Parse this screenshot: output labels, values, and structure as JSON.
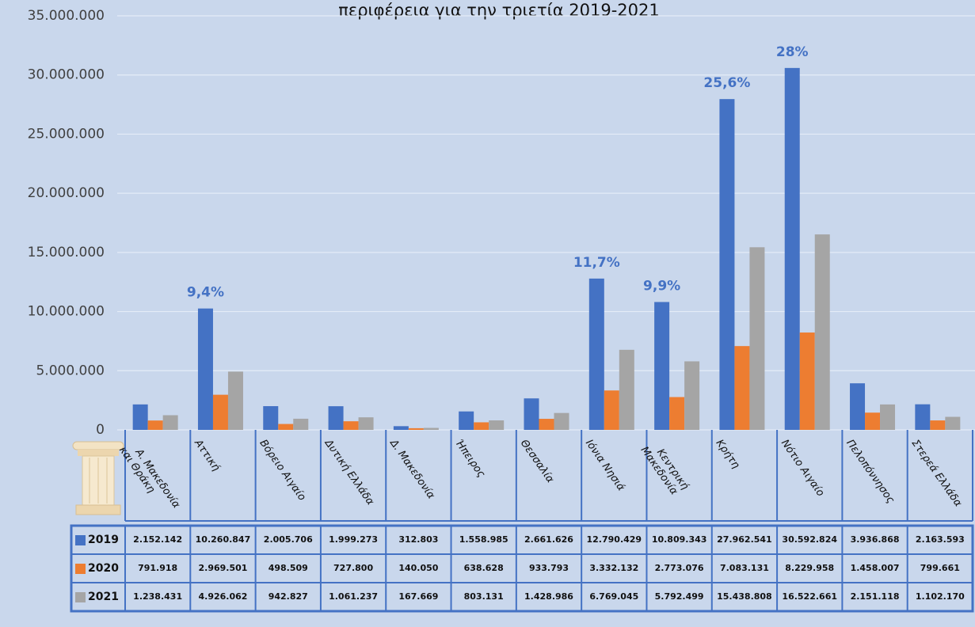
{
  "chart_data": {
    "type": "bar",
    "title": "περιφέρεια για την τριετία 2019-2021",
    "categories": [
      "Α. Μακεδονία και Θράκη",
      "Αττική",
      "Βόρειο Αιγαίο",
      "Δυτική Ελλάδα",
      "Δ. Μακεδονία",
      "Ήπειρος",
      "Θεσσαλία",
      "Ιόνια Νησιά",
      "Κεντρική Μακεδονία",
      "Κρήτη",
      "Νότιο Αιγαίο",
      "Πελοπόννησος",
      "Στερεά Ελλάδα"
    ],
    "series": [
      {
        "name": "2019",
        "color": "#4472c4",
        "values": [
          2152142,
          10260847,
          2005706,
          1999273,
          312803,
          1558985,
          2661626,
          12790429,
          10809343,
          27962541,
          30592824,
          3936868,
          2163593
        ],
        "value_labels": [
          "2.152.142",
          "10.260.847",
          "2.005.706",
          "1.999.273",
          "312.803",
          "1.558.985",
          "2.661.626",
          "12.790.429",
          "10.809.343",
          "27.962.541",
          "30.592.824",
          "3.936.868",
          "2.163.593"
        ]
      },
      {
        "name": "2020",
        "color": "#ed7d31",
        "values": [
          791918,
          2969501,
          498509,
          727800,
          140050,
          638628,
          933793,
          3332132,
          2773076,
          7083131,
          8229958,
          1458007,
          799661
        ],
        "value_labels": [
          "791.918",
          "2.969.501",
          "498.509",
          "727.800",
          "140.050",
          "638.628",
          "933.793",
          "3.332.132",
          "2.773.076",
          "7.083.131",
          "8.229.958",
          "1.458.007",
          "799.661"
        ]
      },
      {
        "name": "2021",
        "color": "#a5a5a5",
        "values": [
          1238431,
          4926062,
          942827,
          1061237,
          167669,
          803131,
          1428986,
          6769045,
          5792499,
          15438808,
          16522661,
          2151118,
          1102170
        ],
        "value_labels": [
          "1.238.431",
          "4.926.062",
          "942.827",
          "1.061.237",
          "167.669",
          "803.131",
          "1.428.986",
          "6.769.045",
          "5.792.499",
          "15.438.808",
          "16.522.661",
          "2.151.118",
          "1.102.170"
        ]
      }
    ],
    "share_labels": [
      null,
      "9,4%",
      null,
      null,
      null,
      null,
      null,
      "11,7%",
      "9,9%",
      "25,6%",
      "28%",
      null,
      null
    ],
    "ylim": [
      0,
      35000000
    ],
    "yticks": [
      0,
      {
        "value": 5000000,
        "label": "5.000.000"
      },
      {
        "value": 10000000,
        "label": "10.000.000"
      },
      {
        "value": 15000000,
        "label": "15.000.000"
      },
      {
        "value": 20000000,
        "label": "20.000.000"
      },
      {
        "value": 25000000,
        "label": "25.000.000"
      },
      {
        "value": 30000000,
        "label": "30.000.000"
      },
      {
        "value": 35000000,
        "label": "35.000.000"
      }
    ],
    "grid": true
  }
}
